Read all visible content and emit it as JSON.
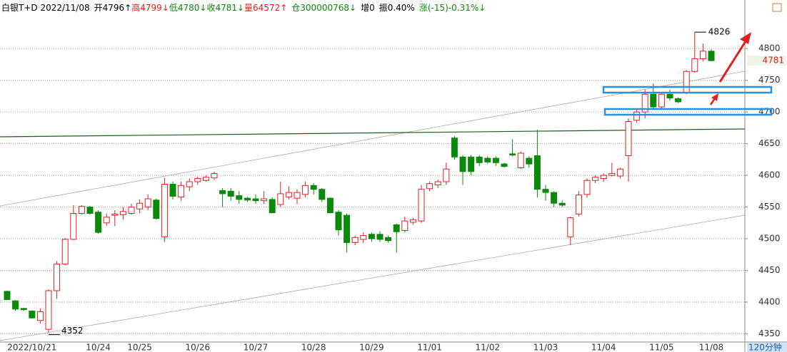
{
  "chart_data": {
    "type": "candlestick",
    "title_parts": [
      {
        "text": "白银T+D 2022/11/08",
        "color": "#000000"
      },
      {
        "text": "开4796↑",
        "color": "#000000"
      },
      {
        "text": "高4799↓",
        "color": "#e0201e"
      },
      {
        "text": "低4780↓",
        "color": "#0a8a0a"
      },
      {
        "text": "收4781↓",
        "color": "#0a8a0a"
      },
      {
        "text": "量64572↑",
        "color": "#e0201e"
      },
      {
        "text": "仓300000768↓",
        "color": "#0a8a0a"
      },
      {
        "text": "增0",
        "color": "#000000"
      },
      {
        "text": "振0.40%",
        "color": "#000000"
      },
      {
        "text": "涨(-15)-0.31%↓",
        "color": "#0a8a0a"
      }
    ],
    "period_label": "120分钟",
    "categories": [
      null,
      null,
      null,
      "2022/10/21",
      null,
      null,
      null,
      null,
      null,
      null,
      null,
      "10/24",
      null,
      null,
      null,
      null,
      "10/25",
      null,
      null,
      null,
      null,
      null,
      null,
      "10/26",
      null,
      null,
      null,
      null,
      null,
      null,
      "10/27",
      null,
      null,
      null,
      null,
      null,
      null,
      "10/28",
      null,
      null,
      null,
      null,
      null,
      null,
      "10/29",
      null,
      null,
      null,
      null,
      null,
      null,
      "11/01",
      null,
      null,
      null,
      null,
      null,
      null,
      "11/02",
      null,
      null,
      null,
      null,
      null,
      null,
      "11/03",
      null,
      null,
      null,
      null,
      null,
      null,
      "11/04",
      null,
      null,
      null,
      null,
      null,
      null,
      "11/05",
      null,
      null,
      null,
      null,
      null,
      "11/08"
    ],
    "open": [
      4417,
      4402,
      4390,
      4386,
      4371,
      4357,
      4418,
      4460,
      4499,
      4540,
      4550,
      4542,
      4525,
      4537,
      4538,
      4540,
      4547,
      4550,
      4561,
      4503,
      4586,
      4566,
      4582,
      4590,
      4592,
      4596,
      4576,
      4575,
      4568,
      4564,
      4563,
      4560,
      4562,
      4554,
      4566,
      4564,
      4570,
      4584,
      4578,
      4564,
      4542,
      4537,
      4494,
      4499,
      4507,
      4507,
      4502,
      4522,
      4513,
      4526,
      4528,
      4579,
      4585,
      4590,
      4659,
      4629,
      4629,
      4629,
      4627,
      4627,
      4618,
      4634,
      4612,
      4627,
      4631,
      4578,
      4573,
      4556,
      4503,
      4539,
      4570,
      4592,
      4595,
      4600,
      4599,
      4631,
      4687,
      4700,
      4728,
      4708,
      4728,
      4721,
      4730,
      4764,
      4784,
      4796
    ],
    "high": [
      4418,
      4403,
      4391,
      4387,
      4390,
      4420,
      4465,
      4501,
      4553,
      4553,
      4552,
      4545,
      4540,
      4545,
      4550,
      4555,
      4562,
      4570,
      4563,
      4596,
      4590,
      4590,
      4595,
      4598,
      4600,
      4606,
      4580,
      4580,
      4575,
      4566,
      4570,
      4575,
      4565,
      4590,
      4583,
      4578,
      4590,
      4588,
      4580,
      4565,
      4545,
      4540,
      4505,
      4510,
      4510,
      4512,
      4505,
      4524,
      4535,
      4533,
      4585,
      4590,
      4593,
      4620,
      4662,
      4632,
      4632,
      4632,
      4630,
      4630,
      4620,
      4657,
      4638,
      4630,
      4672,
      4585,
      4575,
      4560,
      4535,
      4575,
      4595,
      4600,
      4603,
      4620,
      4612,
      4690,
      4705,
      4735,
      4745,
      4730,
      4735,
      4723,
      4766,
      4826,
      4808,
      4799
    ],
    "low": [
      4404,
      4386,
      4386,
      4374,
      4366,
      4352,
      4405,
      4458,
      4498,
      4538,
      4538,
      4508,
      4520,
      4520,
      4530,
      4538,
      4540,
      4545,
      4530,
      4495,
      4562,
      4560,
      4575,
      4585,
      4590,
      4593,
      4550,
      4560,
      4555,
      4558,
      4555,
      4555,
      4540,
      4550,
      4562,
      4555,
      4565,
      4570,
      4558,
      4540,
      4505,
      4478,
      4490,
      4493,
      4495,
      4495,
      4494,
      4478,
      4510,
      4522,
      4525,
      4575,
      4580,
      4585,
      4625,
      4585,
      4600,
      4615,
      4618,
      4615,
      4612,
      4630,
      4610,
      4612,
      4565,
      4560,
      4550,
      4550,
      4490,
      4535,
      4565,
      4588,
      4590,
      4598,
      4595,
      4590,
      4683,
      4690,
      4705,
      4705,
      4718,
      4714,
      4728,
      4762,
      4780,
      4780
    ],
    "close": [
      4404,
      4389,
      4388,
      4375,
      4385,
      4418,
      4460,
      4499,
      4540,
      4551,
      4540,
      4510,
      4534,
      4539,
      4543,
      4550,
      4556,
      4563,
      4532,
      4586,
      4567,
      4584,
      4590,
      4595,
      4597,
      4603,
      4571,
      4567,
      4562,
      4561,
      4560,
      4563,
      4541,
      4571,
      4573,
      4573,
      4584,
      4578,
      4562,
      4541,
      4514,
      4494,
      4502,
      4505,
      4500,
      4499,
      4497,
      4511,
      4528,
      4530,
      4578,
      4587,
      4590,
      4610,
      4629,
      4606,
      4606,
      4620,
      4621,
      4620,
      4614,
      4632,
      4635,
      4618,
      4578,
      4573,
      4556,
      4553,
      4533,
      4569,
      4592,
      4597,
      4600,
      4603,
      4610,
      4685,
      4700,
      4728,
      4708,
      4728,
      4722,
      4716,
      4764,
      4784,
      4796,
      4781
    ],
    "up_color": "#e0201e",
    "down_color": "#0a8a0a",
    "ylim": [
      4337,
      4852
    ],
    "yticks": [
      4350,
      4400,
      4450,
      4500,
      4550,
      4600,
      4650,
      4700,
      4750,
      4800
    ],
    "grid": true,
    "annotations": {
      "high": 4826,
      "low": 4352,
      "last": 4781
    }
  }
}
